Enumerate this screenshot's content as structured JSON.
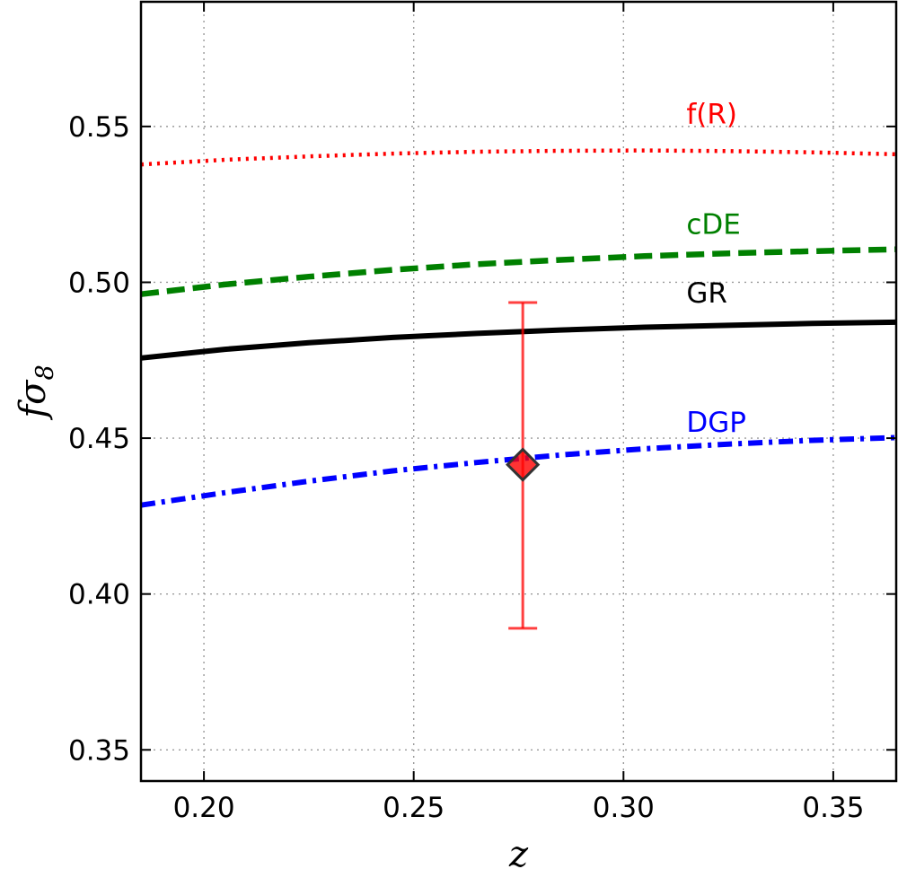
{
  "chart_data": {
    "type": "line",
    "title": "",
    "xlabel": "z",
    "ylabel": "fσ",
    "ylabel_sub": "8",
    "xlim": [
      0.185,
      0.365
    ],
    "ylim": [
      0.34,
      0.59
    ],
    "grid": true,
    "xticks": [
      0.2,
      0.25,
      0.3,
      0.35
    ],
    "yticks": [
      0.35,
      0.4,
      0.45,
      0.5,
      0.55
    ],
    "xtick_labels": [
      "0.20",
      "0.25",
      "0.30",
      "0.35"
    ],
    "ytick_labels": [
      "0.35",
      "0.40",
      "0.45",
      "0.50",
      "0.55"
    ],
    "x": [
      0.185,
      0.205,
      0.225,
      0.245,
      0.265,
      0.285,
      0.305,
      0.325,
      0.345,
      0.365
    ],
    "series": [
      {
        "name": "f(R)",
        "style": "dotted",
        "color": "#ff0000",
        "label_at": [
          0.315,
          0.551
        ],
        "values": [
          0.5378,
          0.5393,
          0.5404,
          0.5413,
          0.5419,
          0.5422,
          0.5423,
          0.5421,
          0.5417,
          0.5411
        ]
      },
      {
        "name": "cDE",
        "style": "dashed",
        "color": "#008000",
        "label_at": [
          0.315,
          0.5155
        ],
        "values": [
          0.4962,
          0.4993,
          0.5018,
          0.504,
          0.5058,
          0.5072,
          0.5084,
          0.5093,
          0.51,
          0.5106
        ]
      },
      {
        "name": "GR",
        "style": "solid",
        "color": "#000000",
        "label_at": [
          0.315,
          0.4935
        ],
        "values": [
          0.4757,
          0.4785,
          0.4806,
          0.4823,
          0.4836,
          0.4847,
          0.4856,
          0.4862,
          0.4868,
          0.4872
        ]
      },
      {
        "name": "DGP",
        "style": "dashdot",
        "color": "#0000ff",
        "label_at": [
          0.315,
          0.452
        ],
        "values": [
          0.4285,
          0.4325,
          0.4362,
          0.4395,
          0.4422,
          0.4446,
          0.4466,
          0.4481,
          0.4493,
          0.4502
        ]
      }
    ],
    "points": [
      {
        "x": 0.276,
        "y": 0.4415,
        "yerr_low": 0.389,
        "yerr_high": 0.4935,
        "color": "#ff0000",
        "marker": "diamond",
        "edge_color": "#333333"
      }
    ]
  }
}
